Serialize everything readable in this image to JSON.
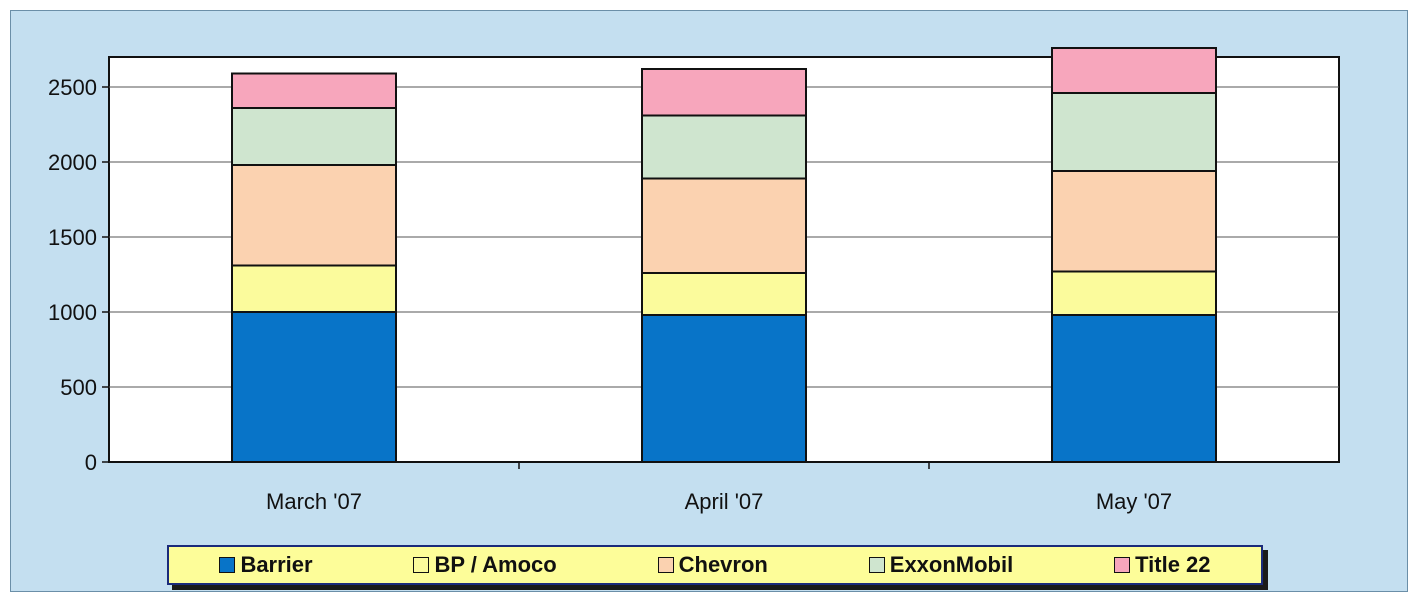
{
  "chart_data": {
    "type": "bar",
    "stacked": true,
    "categories": [
      "March '07",
      "April '07",
      "May '07"
    ],
    "series": [
      {
        "name": "Barrier",
        "color": "#0874c8",
        "values": [
          1000,
          980,
          980
        ]
      },
      {
        "name": "BP / Amoco",
        "color": "#fbfb9c",
        "values": [
          310,
          280,
          290
        ]
      },
      {
        "name": "Chevron",
        "color": "#fbd2b0",
        "values": [
          670,
          630,
          670
        ]
      },
      {
        "name": "ExxonMobil",
        "color": "#cfe5cf",
        "values": [
          380,
          420,
          520
        ]
      },
      {
        "name": "Title 22",
        "color": "#f7a6bc",
        "values": [
          230,
          310,
          300
        ]
      }
    ],
    "yticks": [
      "0",
      "500",
      "1000",
      "1500",
      "2000",
      "2500"
    ],
    "ylim": [
      0,
      2700
    ],
    "grid": true,
    "legend_position": "bottom"
  }
}
